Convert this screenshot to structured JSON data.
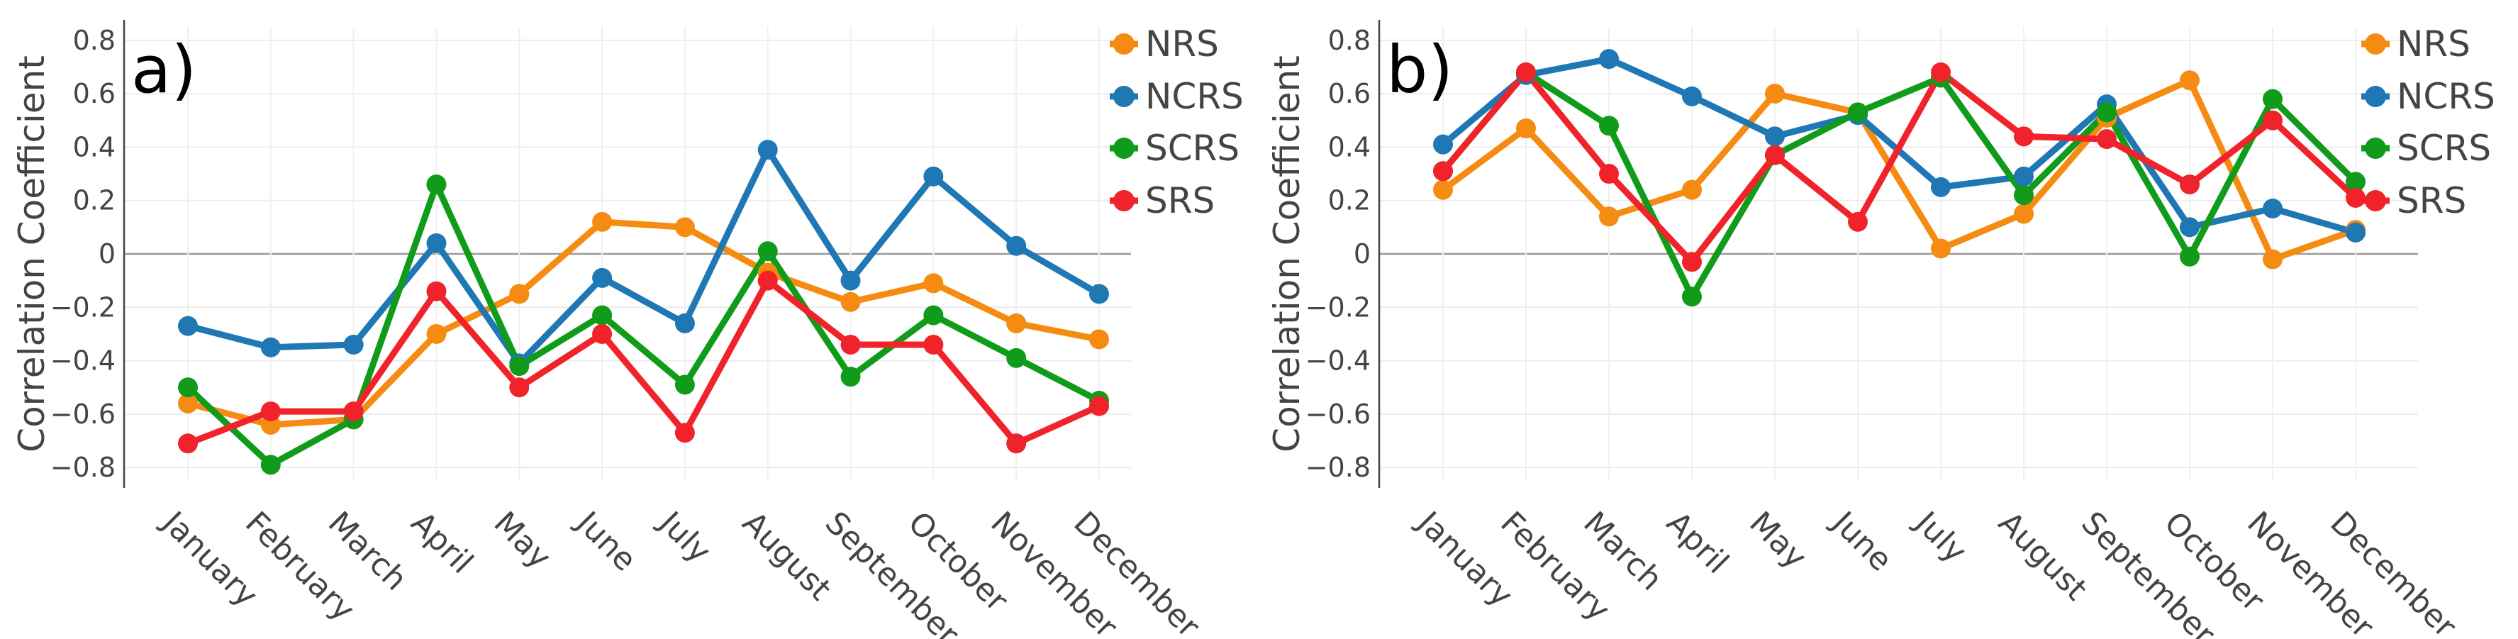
{
  "chart_data": [
    {
      "type": "line",
      "panel_label": "a)",
      "ylabel": "Correlation Coefficient",
      "xlabel": "",
      "ylim": [
        -0.85,
        0.85
      ],
      "yticks": [
        0.8,
        0.6,
        0.4,
        0.2,
        0,
        -0.2,
        -0.4,
        -0.6,
        -0.8
      ],
      "ytick_labels": [
        "0.8",
        "0.6",
        "0.4",
        "0.2",
        "0",
        "−0.2",
        "−0.4",
        "−0.6",
        "−0.8"
      ],
      "categories": [
        "January",
        "February",
        "March",
        "April",
        "May",
        "June",
        "July",
        "August",
        "September",
        "October",
        "November",
        "December"
      ],
      "grid": true,
      "legend_position": "top-right",
      "series": [
        {
          "name": "NRS",
          "color": "#f58b10",
          "values": [
            -0.56,
            -0.64,
            -0.62,
            -0.3,
            -0.15,
            0.12,
            0.1,
            -0.07,
            -0.18,
            -0.11,
            -0.26,
            -0.32
          ]
        },
        {
          "name": "NCRS",
          "color": "#1f77b4",
          "values": [
            -0.27,
            -0.35,
            -0.34,
            0.04,
            -0.41,
            -0.09,
            -0.26,
            0.39,
            -0.1,
            0.29,
            0.03,
            -0.15
          ]
        },
        {
          "name": "SCRS",
          "color": "#109c1a",
          "values": [
            -0.5,
            -0.79,
            -0.62,
            0.26,
            -0.42,
            -0.23,
            -0.49,
            0.01,
            -0.46,
            -0.23,
            -0.39,
            -0.55
          ]
        },
        {
          "name": "SRS",
          "color": "#f0232b",
          "values": [
            -0.71,
            -0.59,
            -0.59,
            -0.14,
            -0.5,
            -0.3,
            -0.67,
            -0.1,
            -0.34,
            -0.34,
            -0.71,
            -0.57
          ]
        }
      ]
    },
    {
      "type": "line",
      "panel_label": "b)",
      "ylabel": "Correlation Coefficient",
      "xlabel": "",
      "ylim": [
        -0.85,
        0.85
      ],
      "yticks": [
        0.8,
        0.6,
        0.4,
        0.2,
        0,
        -0.2,
        -0.4,
        -0.6,
        -0.8
      ],
      "ytick_labels": [
        "0.8",
        "0.6",
        "0.4",
        "0.2",
        "0",
        "−0.2",
        "−0.4",
        "−0.6",
        "−0.8"
      ],
      "categories": [
        "January",
        "February",
        "March",
        "April",
        "May",
        "June",
        "July",
        "August",
        "September",
        "October",
        "November",
        "December"
      ],
      "grid": true,
      "legend_position": "top-right",
      "series": [
        {
          "name": "NRS",
          "color": "#f58b10",
          "values": [
            0.24,
            0.47,
            0.14,
            0.24,
            0.6,
            0.53,
            0.02,
            0.15,
            0.51,
            0.65,
            -0.02,
            0.09
          ]
        },
        {
          "name": "NCRS",
          "color": "#1f77b4",
          "values": [
            0.41,
            0.67,
            0.73,
            0.59,
            0.44,
            0.52,
            0.25,
            0.29,
            0.56,
            0.1,
            0.17,
            0.08
          ]
        },
        {
          "name": "SCRS",
          "color": "#109c1a",
          "values": [
            0.31,
            0.68,
            0.48,
            -0.16,
            0.37,
            0.53,
            0.66,
            0.22,
            0.53,
            -0.01,
            0.58,
            0.27
          ]
        },
        {
          "name": "SRS",
          "color": "#f0232b",
          "values": [
            0.31,
            0.68,
            0.3,
            -0.03,
            0.37,
            0.12,
            0.68,
            0.44,
            0.43,
            0.26,
            0.5,
            0.21
          ]
        }
      ]
    }
  ]
}
